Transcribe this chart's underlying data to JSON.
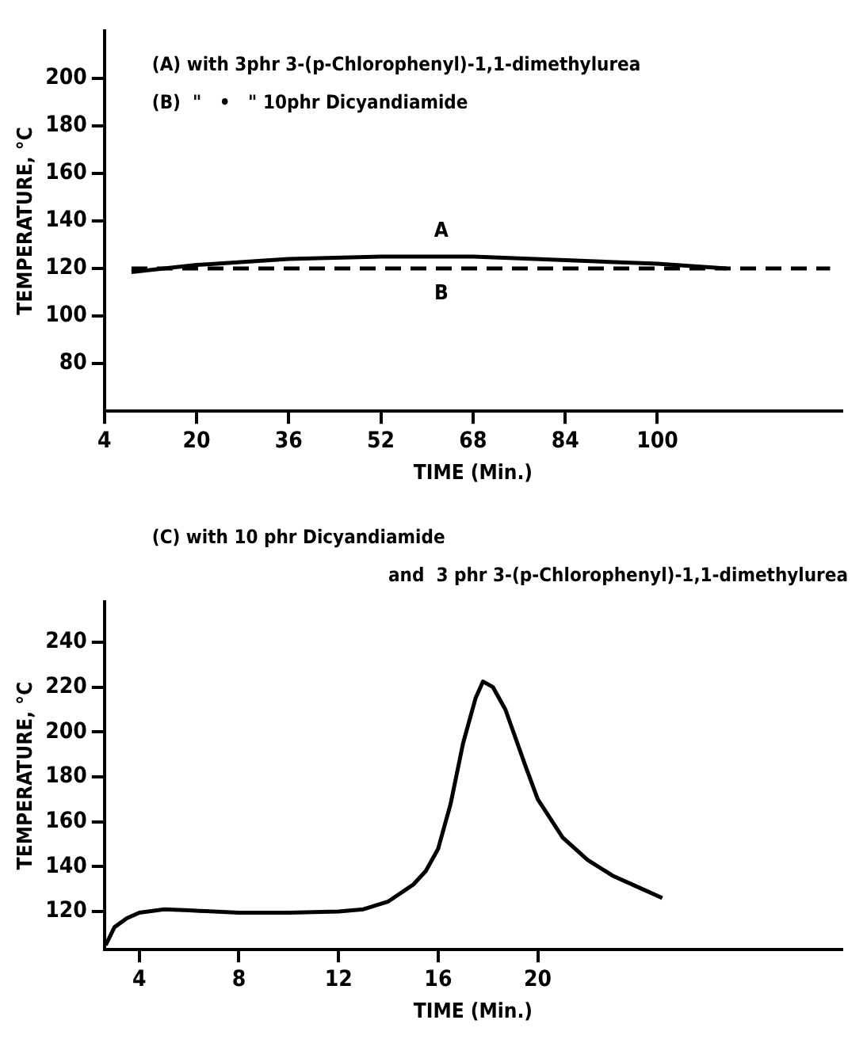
{
  "chart_data": [
    {
      "type": "line",
      "xlabel": "TIME (Min.)",
      "ylabel": "TEMPERATURE, °C",
      "xlim": [
        4,
        132
      ],
      "ylim": [
        60,
        220
      ],
      "xticks": [
        4,
        20,
        36,
        52,
        68,
        84,
        100
      ],
      "yticks": [
        80,
        100,
        120,
        140,
        160,
        180,
        200
      ],
      "grid": false,
      "legend": false,
      "marker": "none",
      "annotations": [
        "(A) with 3phr 3-(p-Chlorophenyl)-1,1-dimethylurea",
        "(B)  \"   •   \" 10phr Dicyandiamide"
      ],
      "series": [
        {
          "name": "A",
          "color": "#000000",
          "line_style": "solid",
          "x": [
            8.7,
            20,
            36,
            52,
            68,
            84,
            100,
            112
          ],
          "values": [
            118.5,
            121.5,
            124,
            125,
            125,
            123.5,
            122,
            120
          ]
        },
        {
          "name": "B",
          "color": "#000000",
          "line_style": "dashed",
          "x": [
            8.7,
            130
          ],
          "values": [
            120,
            120
          ]
        }
      ]
    },
    {
      "type": "line",
      "xlabel": "TIME (Min.)",
      "ylabel": "TEMPERATURE, °C",
      "xlim": [
        2.6,
        32.2
      ],
      "ylim": [
        103,
        258
      ],
      "xticks": [
        4,
        8,
        12,
        16,
        20
      ],
      "yticks": [
        120,
        140,
        160,
        180,
        200,
        220,
        240
      ],
      "grid": false,
      "legend": false,
      "marker": "none",
      "annotations": [
        "(C) with 10 phr Dicyandiamide",
        "and  3 phr 3-(p-Chlorophenyl)-1,1-dimethylurea"
      ],
      "series": [
        {
          "color": "#000000",
          "line_style": "solid",
          "x": [
            2.65,
            3,
            3.5,
            4,
            5,
            6,
            8,
            10,
            12,
            13,
            14,
            15,
            15.5,
            16,
            16.5,
            17,
            17.5,
            17.8,
            18.2,
            18.7,
            19.5,
            20,
            21,
            22,
            23,
            24,
            25
          ],
          "values": [
            105,
            113,
            117,
            119.5,
            121,
            120.5,
            119.5,
            119.5,
            120,
            121,
            124.5,
            132,
            138,
            148,
            168,
            195,
            215,
            222.5,
            220,
            210,
            185,
            170,
            153,
            143,
            136,
            131,
            126
          ]
        }
      ]
    }
  ]
}
